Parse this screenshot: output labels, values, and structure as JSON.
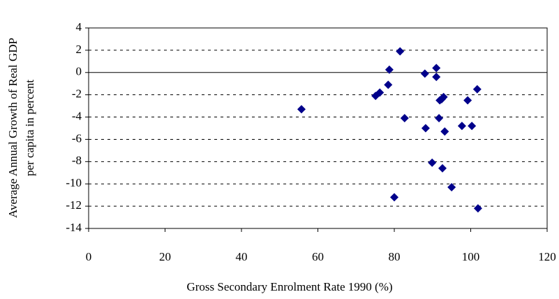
{
  "chart_data": {
    "type": "scatter",
    "xlabel": "Gross Secondary Enrolment Rate 1990 (%)",
    "ylabel": [
      "Average Annual Growth of Real GDP",
      "per capita in percent"
    ],
    "x": [
      55.7,
      75.1,
      76.2,
      78.4,
      78.7,
      81.5,
      80.0,
      82.7,
      88.0,
      88.2,
      89.9,
      91.0,
      91.0,
      91.7,
      91.9,
      92.4,
      92.9,
      92.6,
      93.2,
      95.0,
      97.7,
      99.2,
      100.3,
      101.7,
      101.9
    ],
    "values": [
      -3.3,
      -2.1,
      -1.8,
      -1.1,
      0.25,
      1.9,
      -11.2,
      -4.1,
      -0.1,
      -5.0,
      -8.1,
      0.4,
      -0.4,
      -4.1,
      -2.5,
      -2.4,
      -2.2,
      -8.6,
      -5.3,
      -10.3,
      -4.8,
      -2.5,
      -4.8,
      -1.5,
      -12.2
    ],
    "color": "#00008b",
    "xlim": [
      0,
      120
    ],
    "xticks": [
      0,
      20,
      40,
      60,
      80,
      100,
      120
    ],
    "ylim": [
      -14,
      4
    ],
    "yticks": [
      -14,
      -12,
      -10,
      -8,
      -6,
      -4,
      -2,
      0,
      2,
      4
    ],
    "grid": true
  }
}
